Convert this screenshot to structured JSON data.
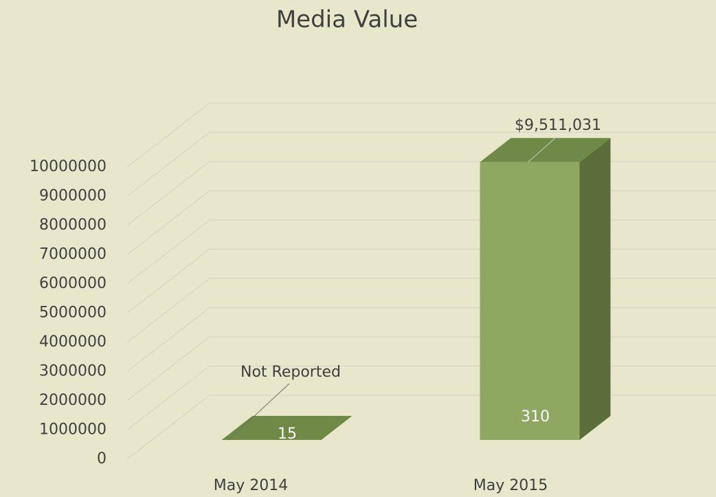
{
  "chart_data": {
    "type": "bar3d",
    "title": "Media Value",
    "categories": [
      "May 2014",
      "May 2015"
    ],
    "values": [
      0,
      9511031
    ],
    "value_labels": [
      "Not Reported",
      "$9,511,031"
    ],
    "bar_annotations": [
      "15",
      "310"
    ],
    "color": "#8ea862",
    "ylim": [
      0,
      10000000
    ],
    "yticks": [
      0,
      1000000,
      2000000,
      3000000,
      4000000,
      5000000,
      6000000,
      7000000,
      8000000,
      9000000,
      10000000
    ],
    "grid": true
  }
}
